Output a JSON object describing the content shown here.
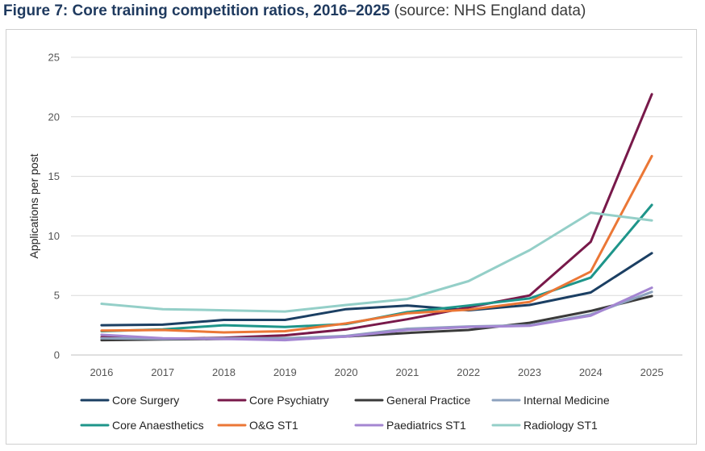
{
  "header": {
    "title": "Figure 7: Core training competition ratios, 2016–2025",
    "source": "(source: NHS England data)"
  },
  "chart_data": {
    "type": "line",
    "title": "Figure 7: Core training competition ratios, 2016–2025",
    "xlabel": "",
    "ylabel": "Applications per post",
    "ylim": [
      0,
      25
    ],
    "yticks": [
      "0",
      "5",
      "10",
      "15",
      "20",
      "25"
    ],
    "grid": true,
    "legend_position": "bottom",
    "categories": [
      "2016",
      "2017",
      "2018",
      "2019",
      "2020",
      "2021",
      "2022",
      "2023",
      "2024",
      "2025"
    ],
    "series": [
      {
        "name": "Core Surgery",
        "color": "#1b3f63",
        "values": [
          2.5,
          2.55,
          2.95,
          2.95,
          3.85,
          4.15,
          3.75,
          4.2,
          5.25,
          8.55
        ]
      },
      {
        "name": "Core Psychiatry",
        "color": "#78194a",
        "values": [
          1.5,
          1.35,
          1.45,
          1.65,
          2.15,
          3.0,
          4.0,
          5.0,
          9.5,
          21.9
        ]
      },
      {
        "name": "General Practice",
        "color": "#3a3a3a",
        "values": [
          1.25,
          1.3,
          1.35,
          1.4,
          1.55,
          1.85,
          2.1,
          2.7,
          3.7,
          4.95
        ]
      },
      {
        "name": "Internal Medicine",
        "color": "#8da2be",
        "values": [
          1.4,
          1.35,
          1.4,
          1.4,
          1.6,
          2.2,
          2.4,
          2.5,
          3.4,
          5.3
        ]
      },
      {
        "name": "Core Anaesthetics",
        "color": "#1e958a",
        "values": [
          2.0,
          2.15,
          2.5,
          2.35,
          2.6,
          3.6,
          4.15,
          4.75,
          6.5,
          12.6
        ]
      },
      {
        "name": "O&G ST1",
        "color": "#eb7736",
        "values": [
          2.05,
          2.1,
          1.9,
          2.0,
          2.65,
          3.5,
          3.8,
          4.45,
          7.0,
          16.7
        ]
      },
      {
        "name": "Paediatrics ST1",
        "color": "#a486d2",
        "values": [
          1.7,
          1.4,
          1.35,
          1.25,
          1.55,
          2.1,
          2.35,
          2.45,
          3.3,
          5.65
        ]
      },
      {
        "name": "Radiology ST1",
        "color": "#94cfc8",
        "values": [
          4.3,
          3.85,
          3.75,
          3.65,
          4.2,
          4.7,
          6.2,
          8.8,
          11.95,
          11.3
        ]
      }
    ]
  }
}
